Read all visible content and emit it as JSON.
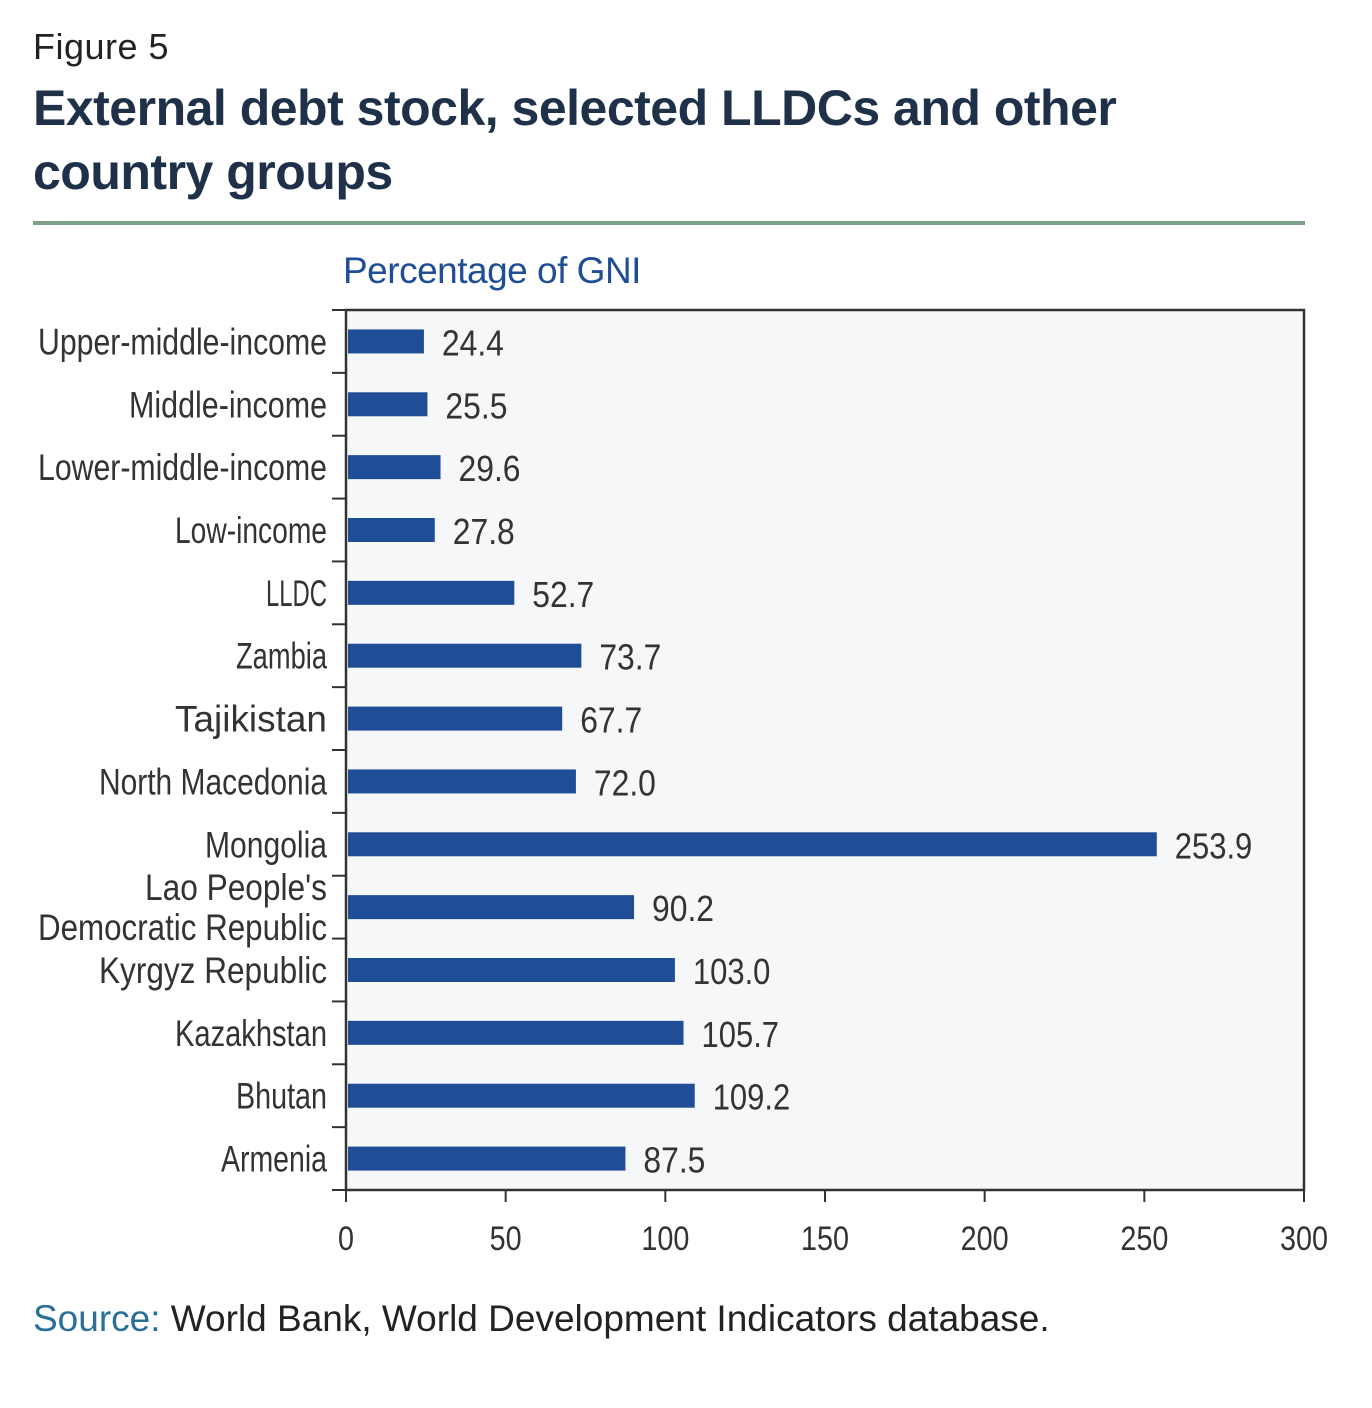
{
  "figure": {
    "label": "Figure 5",
    "title": "External debt stock, selected LLDCs and other country groups"
  },
  "chart_data": {
    "type": "bar",
    "orientation": "horizontal",
    "unit_label": "Percentage of GNI",
    "categories": [
      "Upper-middle-income",
      "Middle-income",
      "Lower-middle-income",
      "Low-income",
      "LLDC",
      "Zambia",
      "Tajikistan",
      "North Macedonia",
      "Mongolia",
      "Lao People's Democratic Republic",
      "Kyrgyz Republic",
      "Kazakhstan",
      "Bhutan",
      "Armenia"
    ],
    "category_label_lines": [
      [
        "Upper-middle-income"
      ],
      [
        "Middle-income"
      ],
      [
        "Lower-middle-income"
      ],
      [
        "Low-income"
      ],
      [
        "LLDC"
      ],
      [
        "Zambia"
      ],
      [
        "Tajikistan"
      ],
      [
        "North Macedonia"
      ],
      [
        "Mongolia"
      ],
      [
        "Lao People's",
        "Democratic Republic"
      ],
      [
        "Kyrgyz Republic"
      ],
      [
        "Kazakhstan"
      ],
      [
        "Bhutan"
      ],
      [
        "Armenia"
      ]
    ],
    "values": [
      24.4,
      25.5,
      29.6,
      27.8,
      52.7,
      73.7,
      67.7,
      72.0,
      253.9,
      90.2,
      103.0,
      105.7,
      109.2,
      87.5
    ],
    "value_labels": [
      "24.4",
      "25.5",
      "29.6",
      "27.8",
      "52.7",
      "73.7",
      "67.7",
      "72.0",
      "253.9",
      "90.2",
      "103.0",
      "105.7",
      "109.2",
      "87.5"
    ],
    "xlim": [
      0,
      300
    ],
    "xticks": [
      0,
      50,
      100,
      150,
      200,
      250,
      300
    ],
    "xtick_labels": [
      "0",
      "50",
      "100",
      "150",
      "200",
      "250",
      "300"
    ],
    "grid": false,
    "legend": "none",
    "bar_color": "#1f4e96",
    "plot_background": "#f6f7f9"
  },
  "source": {
    "key": "Source:",
    "text": " World Bank, World Development Indicators database."
  }
}
